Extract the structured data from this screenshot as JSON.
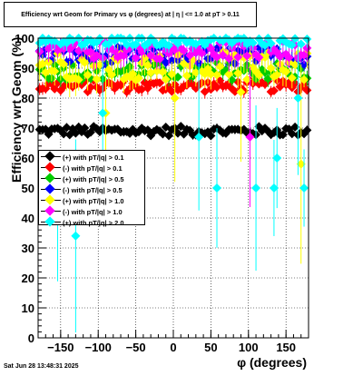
{
  "title": "Efficiency wrt Geom for Primary vs φ (degrees) at |  η  | <= 1.0 at pT > 0.11",
  "timestamp": "Sat Jun 28 13:48:31 2025",
  "chart_data": {
    "type": "scatter",
    "xlabel": "φ (degrees)",
    "ylabel": "Efficiency wrt Geom (%)",
    "xlim": [
      -180,
      180
    ],
    "ylim": [
      0,
      100
    ],
    "xticks": [
      -150,
      -100,
      -50,
      0,
      50,
      100,
      150
    ],
    "xtick_labels": [
      "−150",
      "−100",
      "−50",
      "0",
      "50",
      "100",
      "150"
    ],
    "yticks": [
      0,
      10,
      20,
      30,
      40,
      50,
      60,
      70,
      80,
      90,
      100
    ],
    "ytick_labels": [
      "0",
      "10",
      "20",
      "30",
      "40",
      "50",
      "60",
      "70",
      "80",
      "90",
      "100"
    ],
    "grid": true,
    "legend_position": "middle-left",
    "series": [
      {
        "name": "(+) with pT/|q| > 0.1",
        "color": "#000000",
        "level": 69,
        "spread": 1.6,
        "err": 1.0,
        "dips": []
      },
      {
        "name": "(-) with pT/|q| > 0.1",
        "color": "#ff0000",
        "level": 84,
        "spread": 2.0,
        "err": 1.5,
        "dips": []
      },
      {
        "name": "(+) with pT/|q| > 0.5",
        "color": "#00cc00",
        "level": 89,
        "spread": 3.0,
        "err": 2.0,
        "dips": []
      },
      {
        "name": "(-) with pT/|q| > 0.5",
        "color": "#0000ff",
        "level": 94,
        "spread": 3.0,
        "err": 2.5,
        "dips": []
      },
      {
        "name": "(+) with pT/|q| > 1.0",
        "color": "#ffff00",
        "level": 91,
        "spread": 5.0,
        "err": 4.0,
        "dips": [
          [
            -92,
            75
          ],
          [
            0,
            80
          ],
          [
            88,
            82
          ],
          [
            168,
            58
          ]
        ]
      },
      {
        "name": "(-) with pT/|q| > 1.0",
        "color": "#ff00ff",
        "level": 96,
        "spread": 3.0,
        "err": 3.0,
        "dips": [
          [
            100,
            67
          ]
        ]
      },
      {
        "name": "(+) with pT/|q| > 2.0",
        "color": "#00ffff",
        "level": 99,
        "spread": 1.5,
        "err": 2.0,
        "dips": [
          [
            -155,
            40
          ],
          [
            -133,
            34
          ],
          [
            30,
            67
          ],
          [
            57,
            50
          ],
          [
            108,
            50
          ],
          [
            131,
            50
          ],
          [
            135,
            60
          ],
          [
            163,
            80
          ],
          [
            170,
            50
          ],
          [
            -95,
            75
          ]
        ]
      }
    ]
  }
}
